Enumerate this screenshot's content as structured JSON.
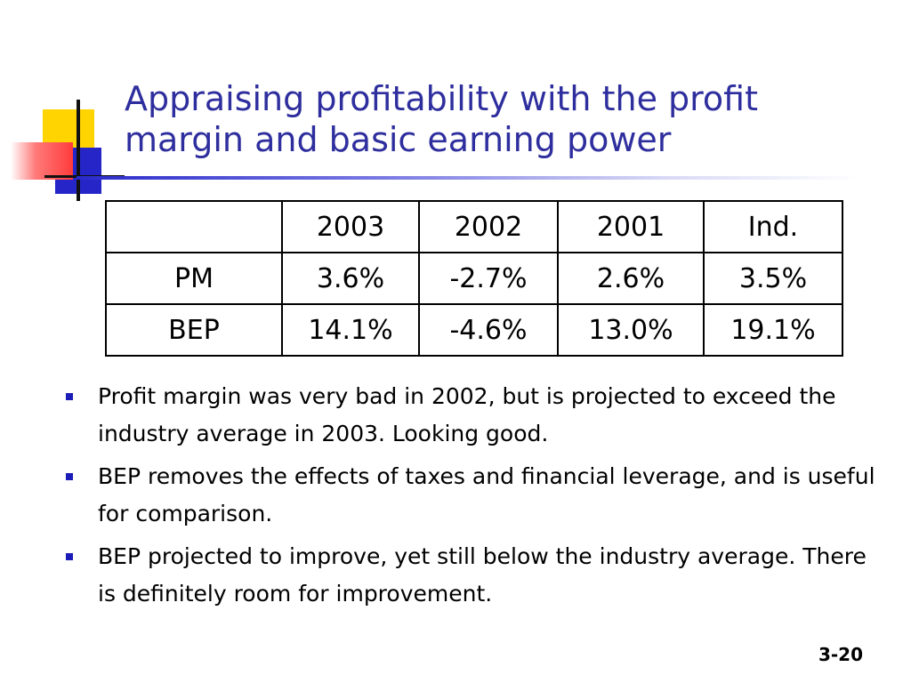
{
  "title": {
    "line1": "Appraising profitability with the profit",
    "line2": "margin and basic earning power"
  },
  "table": {
    "headers": [
      "",
      "2003",
      "2002",
      "2001",
      "Ind."
    ],
    "rows": [
      [
        "PM",
        "3.6%",
        "-2.7%",
        "2.6%",
        "3.5%"
      ],
      [
        "BEP",
        "14.1%",
        "-4.6%",
        "13.0%",
        "19.1%"
      ]
    ]
  },
  "bullets": [
    "Profit margin was very bad in 2002, but is projected to exceed the industry average in 2003.  Looking good.",
    "BEP removes the effects of taxes and financial leverage, and is useful for comparison.",
    "BEP projected to improve, yet still below the industry average.  There is definitely room for improvement."
  ],
  "page_number": "3-20",
  "colors": {
    "title": "#2e2e9e",
    "bullet": "#1c1cb8",
    "logo_yellow": "#ffd400",
    "logo_blue": "#2626c8",
    "logo_red": "#ff3b3b"
  }
}
